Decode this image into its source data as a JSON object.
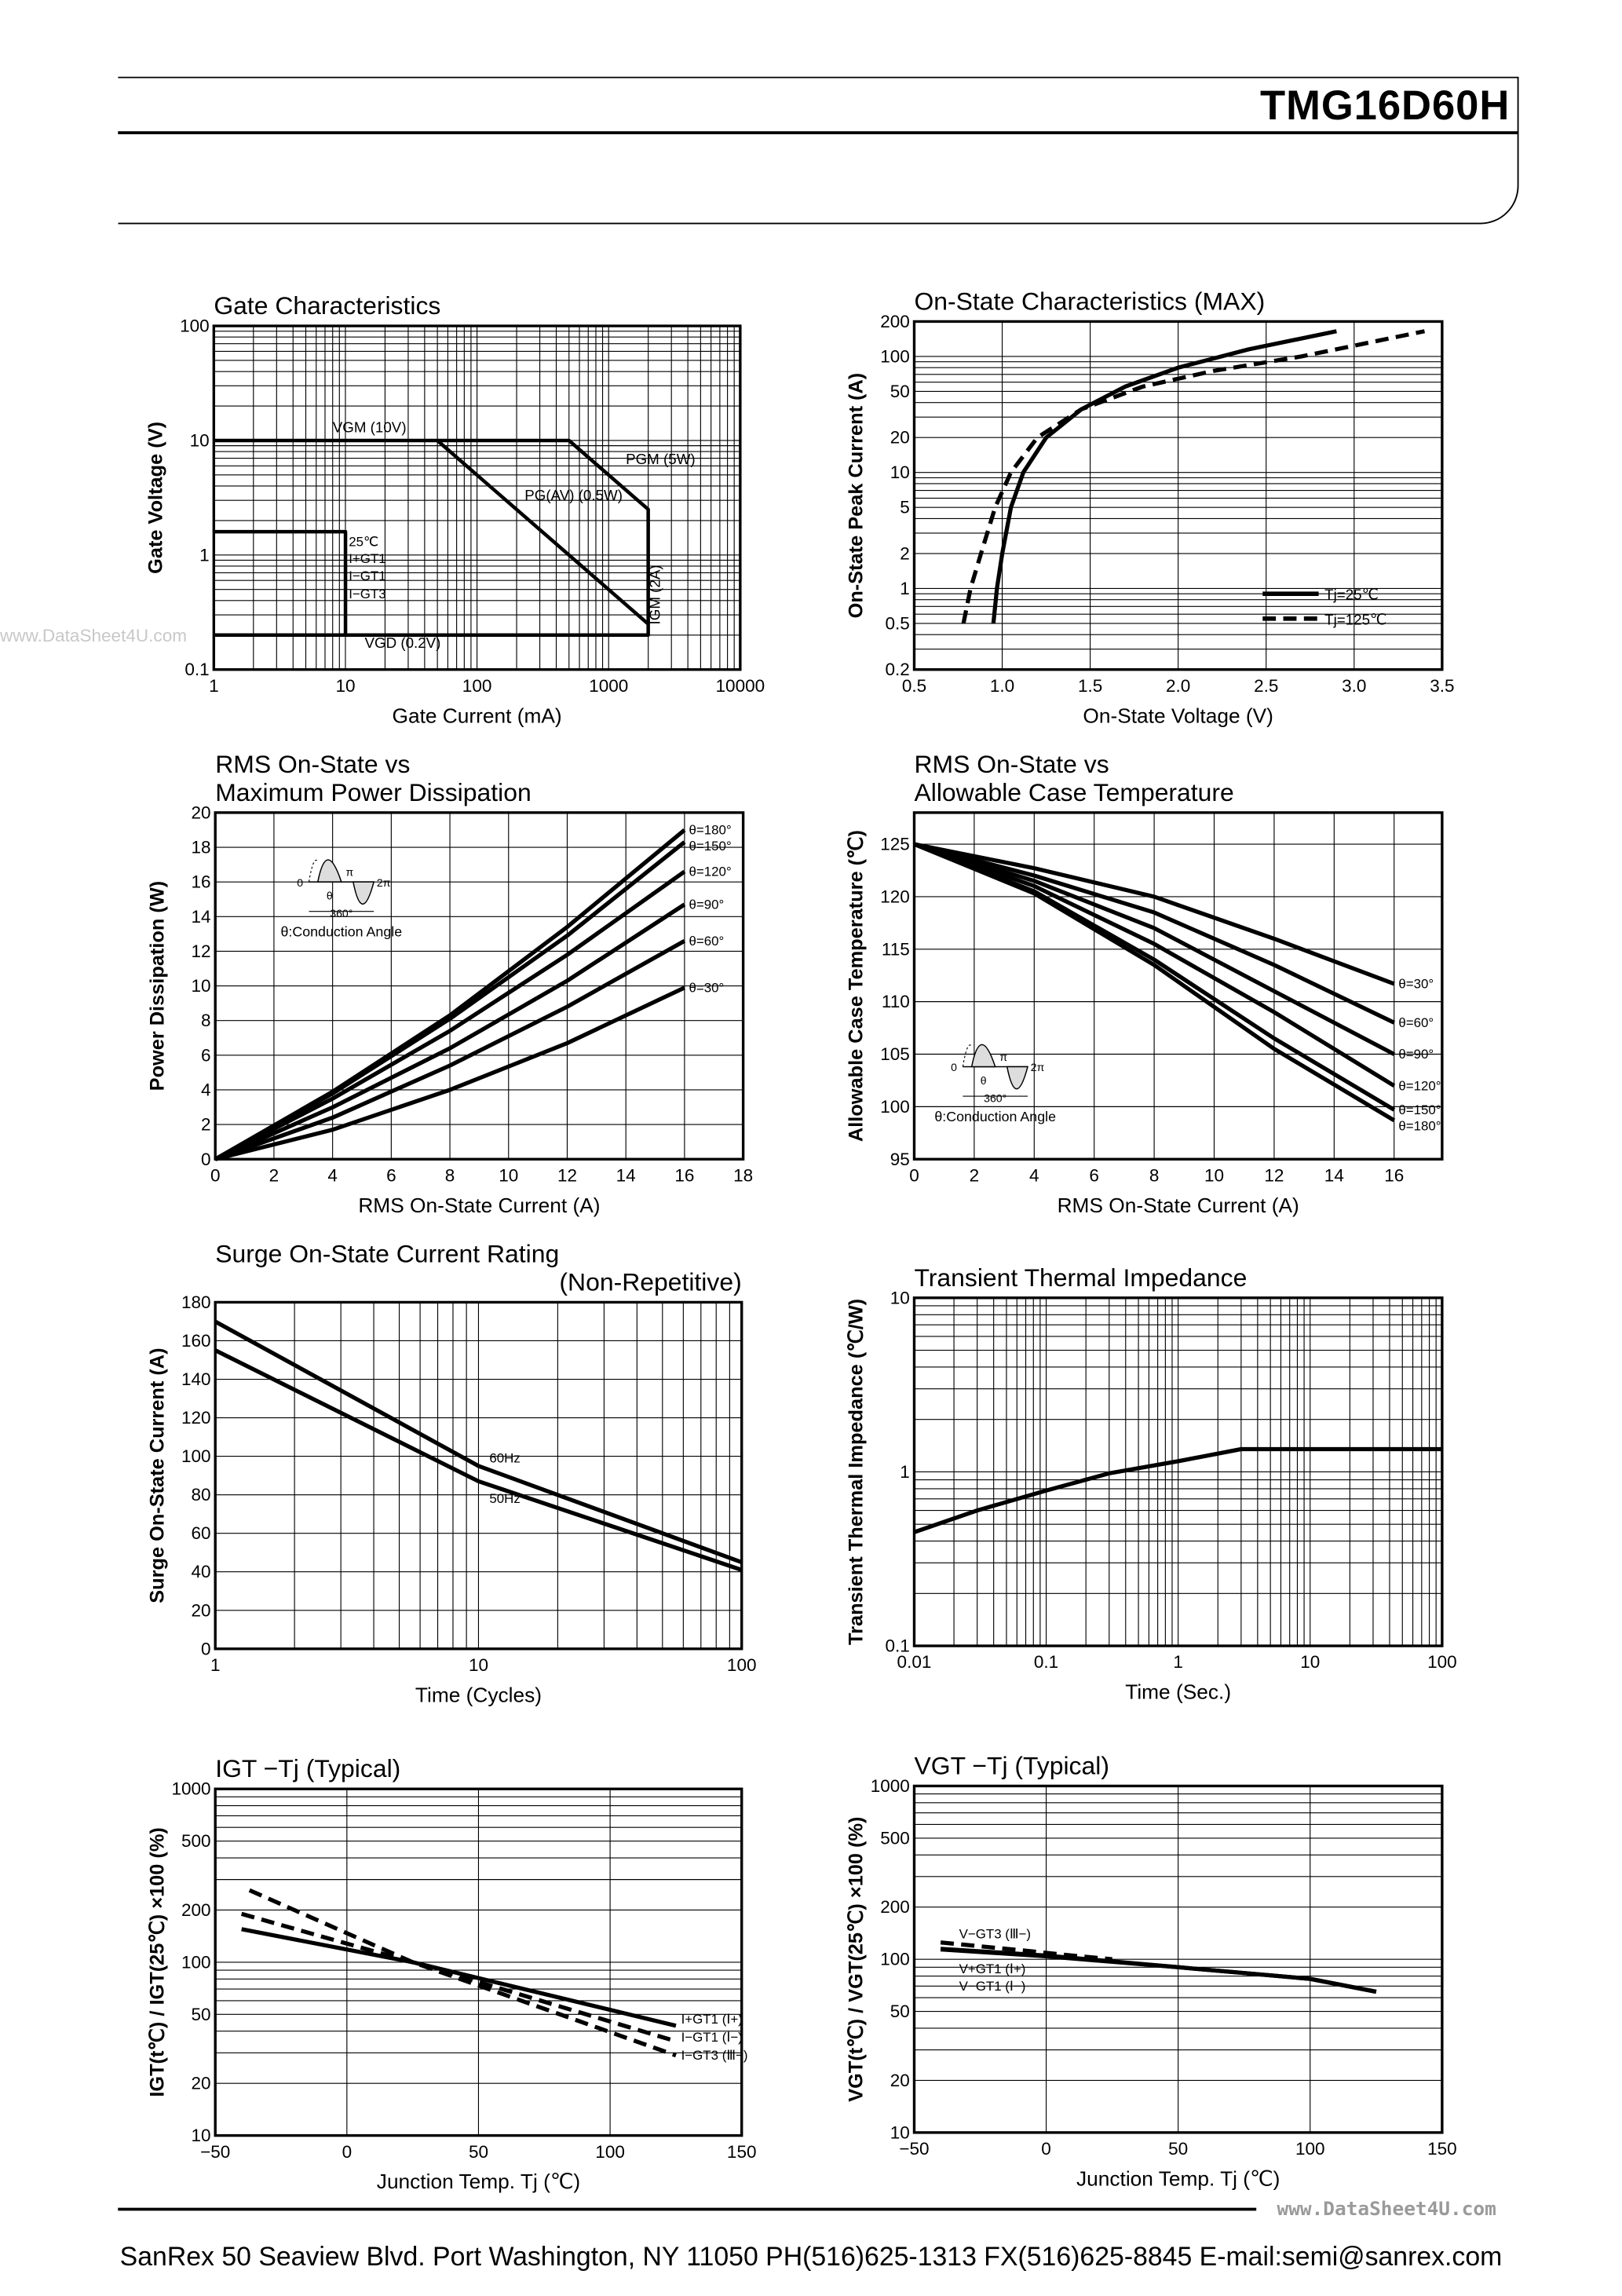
{
  "header": {
    "part_number": "TMG16D60H"
  },
  "watermarks": {
    "left": "www.DataSheet4U.com",
    "footer": "www.DataSheet4U.com"
  },
  "footer": {
    "text": "SanRex 50 Seaview Blvd. Port Washington, NY 11050 PH(516)625-1313 FX(516)625-8845 E-mail:semi@sanrex.com"
  },
  "inset": {
    "caption": "θ:Conduction Angle",
    "zero": "0",
    "pi": "π",
    "two_pi": "2π",
    "theta": "θ",
    "period": "360°"
  },
  "chart_data": [
    {
      "type": "line",
      "title": [
        "Gate Characteristics"
      ],
      "xlabel": "Gate Current (mA)",
      "ylabel": "Gate Voltage (V)",
      "xscale": "log",
      "yscale": "log",
      "xlim": [
        1,
        10000
      ],
      "ylim": [
        0.1,
        100
      ],
      "grid": true,
      "xticks": [
        "1",
        "10",
        "100",
        "1000",
        "10000"
      ],
      "xtick_values": [
        1,
        10,
        100,
        1000,
        10000
      ],
      "yticks": [
        "0.1",
        "1",
        "10",
        "100"
      ],
      "ytick_values": [
        0.1,
        1,
        10,
        100
      ],
      "series": [
        {
          "style": "solid",
          "points": [
            [
              1,
              10
            ],
            [
              500,
              10
            ],
            [
              2000,
              2.5
            ],
            [
              2000,
              0.2
            ],
            [
              1,
              0.2
            ]
          ]
        },
        {
          "style": "solid",
          "points": [
            [
              50,
              10
            ],
            [
              2000,
              0.25
            ]
          ]
        },
        {
          "style": "solid",
          "points": [
            [
              1,
              1.6
            ],
            [
              10,
              1.6
            ],
            [
              10,
              0.2
            ]
          ]
        }
      ],
      "annotations": [
        "VGM (10V)",
        "PGM (5W)",
        "PG(AV) (0.5W)",
        "IGM (2A)",
        "VGD (0.2V)",
        "25℃",
        "I+GT1",
        "I−GT1",
        "I−GT3"
      ]
    },
    {
      "type": "line",
      "title": [
        "On-State Characteristics (MAX)"
      ],
      "xlabel": "On-State Voltage (V)",
      "ylabel": "On-State Peak Current (A)",
      "xscale": "linear",
      "yscale": "log",
      "xlim": [
        0.5,
        3.5
      ],
      "ylim": [
        0.2,
        200
      ],
      "grid": true,
      "xticks": [
        "0.5",
        "1.0",
        "1.5",
        "2.0",
        "2.5",
        "3.0",
        "3.5"
      ],
      "xtick_values": [
        0.5,
        1.0,
        1.5,
        2.0,
        2.5,
        3.0,
        3.5
      ],
      "yticks": [
        "0.2",
        "0.5",
        "1",
        "2",
        "5",
        "10",
        "20",
        "50",
        "100",
        "200"
      ],
      "ytick_values": [
        0.2,
        0.5,
        1,
        2,
        5,
        10,
        20,
        50,
        100,
        200
      ],
      "legend": "bottom-right",
      "series": [
        {
          "name": "Tj=25℃",
          "style": "solid",
          "points": [
            [
              0.95,
              0.5
            ],
            [
              0.97,
              1
            ],
            [
              1.0,
              2
            ],
            [
              1.05,
              5
            ],
            [
              1.12,
              10
            ],
            [
              1.25,
              20
            ],
            [
              1.45,
              35
            ],
            [
              1.7,
              55
            ],
            [
              2.0,
              80
            ],
            [
              2.4,
              115
            ],
            [
              2.9,
              165
            ]
          ]
        },
        {
          "name": "Tj=125℃",
          "style": "dashed",
          "points": [
            [
              0.78,
              0.5
            ],
            [
              0.82,
              1
            ],
            [
              0.88,
              2
            ],
            [
              0.96,
              5
            ],
            [
              1.05,
              10
            ],
            [
              1.2,
              20
            ],
            [
              1.45,
              35
            ],
            [
              1.8,
              55
            ],
            [
              2.2,
              75
            ],
            [
              2.7,
              100
            ],
            [
              3.4,
              165
            ]
          ]
        }
      ]
    },
    {
      "type": "line",
      "title": [
        "RMS On-State vs",
        "Maximum Power Dissipation"
      ],
      "xlabel": "RMS On-State Current (A)",
      "ylabel": "Power Dissipation (W)",
      "xscale": "linear",
      "yscale": "linear",
      "xlim": [
        0,
        18
      ],
      "ylim": [
        0,
        20
      ],
      "grid": true,
      "xticks": [
        "0",
        "2",
        "4",
        "6",
        "8",
        "10",
        "12",
        "14",
        "16",
        "18"
      ],
      "xtick_values": [
        0,
        2,
        4,
        6,
        8,
        10,
        12,
        14,
        16,
        18
      ],
      "yticks": [
        "0",
        "2",
        "4",
        "6",
        "8",
        "10",
        "12",
        "14",
        "16",
        "18",
        "20"
      ],
      "ytick_values": [
        0,
        2,
        4,
        6,
        8,
        10,
        12,
        14,
        16,
        18,
        20
      ],
      "series": [
        {
          "name": "θ=180°",
          "style": "solid",
          "points": [
            [
              0,
              0
            ],
            [
              4,
              3.9
            ],
            [
              8,
              8.3
            ],
            [
              12,
              13.4
            ],
            [
              16,
              19.0
            ]
          ]
        },
        {
          "name": "θ=150°",
          "style": "solid",
          "points": [
            [
              0,
              0
            ],
            [
              4,
              3.8
            ],
            [
              8,
              8.1
            ],
            [
              12,
              12.9
            ],
            [
              16,
              18.3
            ]
          ]
        },
        {
          "name": "θ=120°",
          "style": "solid",
          "points": [
            [
              0,
              0
            ],
            [
              4,
              3.5
            ],
            [
              8,
              7.4
            ],
            [
              12,
              11.8
            ],
            [
              16,
              16.6
            ]
          ]
        },
        {
          "name": "θ=90°",
          "style": "solid",
          "points": [
            [
              0,
              0
            ],
            [
              4,
              3.0
            ],
            [
              8,
              6.4
            ],
            [
              12,
              10.3
            ],
            [
              16,
              14.7
            ]
          ]
        },
        {
          "name": "θ=60°",
          "style": "solid",
          "points": [
            [
              0,
              0
            ],
            [
              4,
              2.4
            ],
            [
              8,
              5.4
            ],
            [
              12,
              8.8
            ],
            [
              16,
              12.6
            ]
          ]
        },
        {
          "name": "θ=30°",
          "style": "solid",
          "points": [
            [
              0,
              0
            ],
            [
              4,
              1.7
            ],
            [
              8,
              4.0
            ],
            [
              12,
              6.7
            ],
            [
              16,
              9.9
            ]
          ]
        }
      ],
      "inset": true
    },
    {
      "type": "line",
      "title": [
        "RMS On-State vs",
        "Allowable Case Temperature"
      ],
      "xlabel": "RMS On-State Current (A)",
      "ylabel": "Allowable Case Temperature (℃)",
      "xscale": "linear",
      "yscale": "linear",
      "xlim": [
        0,
        17.6
      ],
      "ylim": [
        95,
        128
      ],
      "grid": true,
      "xticks": [
        "0",
        "2",
        "4",
        "6",
        "8",
        "10",
        "12",
        "14",
        "16"
      ],
      "xtick_values": [
        0,
        2,
        4,
        6,
        8,
        10,
        12,
        14,
        16
      ],
      "yticks": [
        "95",
        "100",
        "105",
        "110",
        "115",
        "120",
        "125"
      ],
      "ytick_values": [
        95,
        100,
        105,
        110,
        115,
        120,
        125
      ],
      "series": [
        {
          "name": "θ=30°",
          "style": "solid",
          "points": [
            [
              0,
              125
            ],
            [
              4,
              122.7
            ],
            [
              8,
              120.0
            ],
            [
              12,
              116.0
            ],
            [
              16,
              111.7
            ]
          ]
        },
        {
          "name": "θ=60°",
          "style": "solid",
          "points": [
            [
              0,
              125
            ],
            [
              4,
              122.0
            ],
            [
              8,
              118.5
            ],
            [
              12,
              113.5
            ],
            [
              16,
              108.0
            ]
          ]
        },
        {
          "name": "θ=90°",
          "style": "solid",
          "points": [
            [
              0,
              125
            ],
            [
              4,
              121.5
            ],
            [
              8,
              117.0
            ],
            [
              12,
              111.0
            ],
            [
              16,
              105.0
            ]
          ]
        },
        {
          "name": "θ=120°",
          "style": "solid",
          "points": [
            [
              0,
              125
            ],
            [
              4,
              121.0
            ],
            [
              8,
              115.5
            ],
            [
              12,
              109.0
            ],
            [
              16,
              102.0
            ]
          ]
        },
        {
          "name": "θ=150°",
          "style": "solid",
          "points": [
            [
              0,
              125
            ],
            [
              4,
              120.5
            ],
            [
              8,
              114.0
            ],
            [
              12,
              106.5
            ],
            [
              16,
              99.7
            ]
          ]
        },
        {
          "name": "θ=180°",
          "style": "solid",
          "points": [
            [
              0,
              125
            ],
            [
              4,
              120.3
            ],
            [
              8,
              113.5
            ],
            [
              12,
              105.5
            ],
            [
              16,
              98.7
            ]
          ]
        }
      ],
      "inset": true
    },
    {
      "type": "line",
      "title": [
        "Surge On-State Current Rating",
        "(Non-Repetitive)"
      ],
      "xlabel": "Time (Cycles)",
      "ylabel": "Surge On-State Current (A)",
      "xscale": "log",
      "yscale": "linear",
      "xlim": [
        1,
        100
      ],
      "ylim": [
        0,
        180
      ],
      "grid": true,
      "xticks": [
        "1",
        "10",
        "100"
      ],
      "xtick_values": [
        1,
        10,
        100
      ],
      "yticks": [
        "0",
        "20",
        "40",
        "60",
        "80",
        "100",
        "120",
        "140",
        "160",
        "180"
      ],
      "ytick_values": [
        0,
        20,
        40,
        60,
        80,
        100,
        120,
        140,
        160,
        180
      ],
      "series": [
        {
          "name": "60Hz",
          "style": "solid",
          "points": [
            [
              1,
              170
            ],
            [
              10,
              95
            ],
            [
              100,
              45
            ]
          ]
        },
        {
          "name": "50Hz",
          "style": "solid",
          "points": [
            [
              1,
              155
            ],
            [
              10,
              87
            ],
            [
              100,
              41
            ]
          ]
        }
      ]
    },
    {
      "type": "line",
      "title": [
        "Transient Thermal Impedance"
      ],
      "xlabel": "Time (Sec.)",
      "ylabel": "Transient Thermal Impedance (℃/W)",
      "xscale": "log",
      "yscale": "log",
      "xlim": [
        0.01,
        100
      ],
      "ylim": [
        0.1,
        10
      ],
      "grid": true,
      "xticks": [
        "0.01",
        "0.1",
        "1",
        "10",
        "100"
      ],
      "xtick_values": [
        0.01,
        0.1,
        1,
        10,
        100
      ],
      "yticks": [
        "0.1",
        "1",
        "10"
      ],
      "ytick_values": [
        0.1,
        1,
        10
      ],
      "series": [
        {
          "style": "solid",
          "points": [
            [
              0.01,
              0.45
            ],
            [
              0.03,
              0.6
            ],
            [
              0.1,
              0.78
            ],
            [
              0.3,
              0.98
            ],
            [
              1,
              1.15
            ],
            [
              3,
              1.35
            ],
            [
              100,
              1.35
            ]
          ]
        }
      ]
    },
    {
      "type": "line",
      "title": [
        "IGT −Tj (Typical)"
      ],
      "xlabel": "Junction Temp. Tj (℃)",
      "ylabel": "IGT(t℃) / IGT(25℃) ×100 (%)",
      "xscale": "linear",
      "yscale": "log",
      "xlim": [
        -50,
        150
      ],
      "ylim": [
        10,
        1000
      ],
      "grid": true,
      "xticks": [
        "−50",
        "0",
        "50",
        "100",
        "150"
      ],
      "xtick_values": [
        -50,
        0,
        50,
        100,
        150
      ],
      "yticks": [
        "10",
        "20",
        "50",
        "100",
        "200",
        "500",
        "1000"
      ],
      "ytick_values": [
        10,
        20,
        50,
        100,
        200,
        500,
        1000
      ],
      "series": [
        {
          "name": "I+GT1 (Ⅰ+)",
          "style": "solid",
          "points": [
            [
              -40,
              155
            ],
            [
              25,
              100
            ],
            [
              125,
              43
            ]
          ]
        },
        {
          "name": "I−GT1 (Ⅰ−)",
          "style": "dashed",
          "points": [
            [
              -40,
              190
            ],
            [
              25,
              100
            ],
            [
              125,
              35
            ]
          ]
        },
        {
          "name": "I−GT3 (Ⅲ−)",
          "style": "dashed",
          "points": [
            [
              -37,
              260
            ],
            [
              25,
              100
            ],
            [
              125,
              29
            ]
          ]
        }
      ]
    },
    {
      "type": "line",
      "title": [
        "VGT −Tj (Typical)"
      ],
      "xlabel": "Junction Temp. Tj (℃)",
      "ylabel": "VGT(t℃) / VGT(25℃) ×100 (%)",
      "xscale": "linear",
      "yscale": "log",
      "xlim": [
        -50,
        150
      ],
      "ylim": [
        10,
        1000
      ],
      "grid": true,
      "xticks": [
        "−50",
        "0",
        "50",
        "100",
        "150"
      ],
      "xtick_values": [
        -50,
        0,
        50,
        100,
        150
      ],
      "yticks": [
        "10",
        "20",
        "50",
        "100",
        "200",
        "500",
        "1000"
      ],
      "ytick_values": [
        10,
        20,
        50,
        100,
        200,
        500,
        1000
      ],
      "series": [
        {
          "name": "V−GT3 (Ⅲ−)",
          "style": "dashed",
          "points": [
            [
              -40,
              125
            ],
            [
              -10,
              113
            ],
            [
              10,
              105
            ],
            [
              25,
              100
            ]
          ]
        },
        {
          "name": "V+GT1 (Ⅰ+)",
          "style": "solid",
          "points": [
            [
              -40,
              115
            ],
            [
              0,
              105
            ],
            [
              50,
              90
            ],
            [
              100,
              77
            ],
            [
              125,
              65
            ]
          ]
        },
        {
          "name": "V−GT1 (Ⅰ−)",
          "style": "solid",
          "points": [
            [
              -40,
              114
            ],
            [
              0,
              104
            ],
            [
              50,
              90
            ],
            [
              100,
              77
            ],
            [
              125,
              65
            ]
          ]
        }
      ]
    }
  ]
}
